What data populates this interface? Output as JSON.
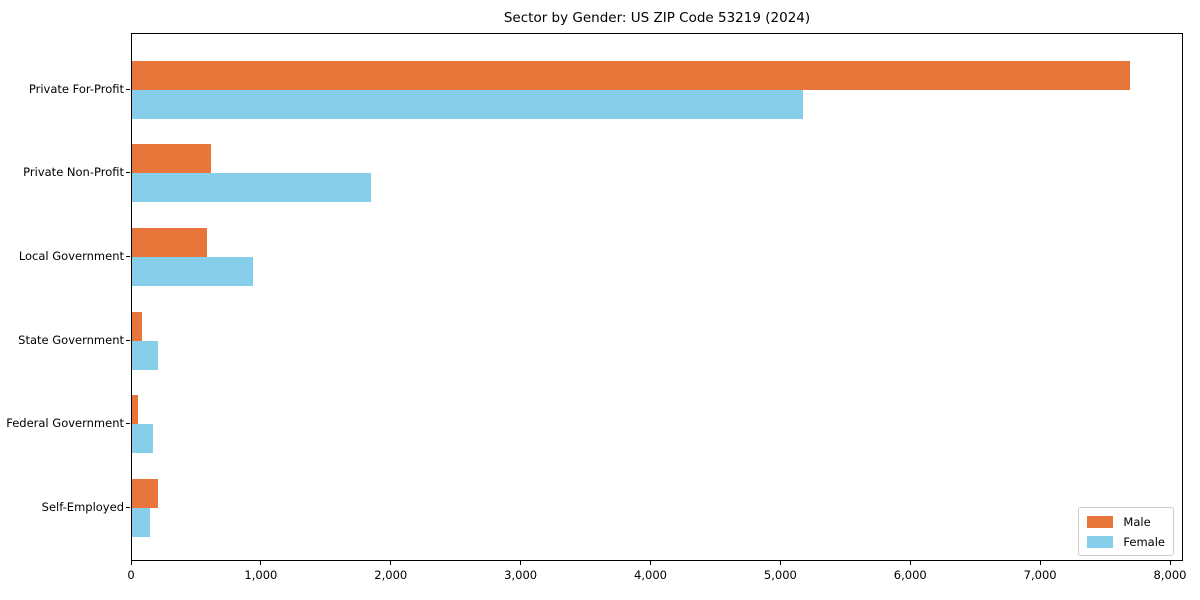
{
  "chart_data": {
    "type": "bar",
    "orientation": "horizontal",
    "title": "Sector by Gender: US ZIP Code 53219 (2024)",
    "categories": [
      "Private For-Profit",
      "Private Non-Profit",
      "Local Government",
      "State Government",
      "Federal Government",
      "Self-Employed"
    ],
    "series": [
      {
        "name": "Male",
        "color": "#E8763B",
        "values": [
          7700,
          610,
          580,
          80,
          50,
          200
        ]
      },
      {
        "name": "Female",
        "color": "#87CEEB",
        "values": [
          5180,
          1840,
          930,
          200,
          160,
          140
        ]
      }
    ],
    "xlabel": "",
    "ylabel": "",
    "xlim": [
      0,
      8100
    ],
    "x_ticks": [
      0,
      1000,
      2000,
      3000,
      4000,
      5000,
      6000,
      7000,
      8000
    ],
    "x_tick_labels": [
      "0",
      "1,000",
      "2,000",
      "3,000",
      "4,000",
      "5,000",
      "6,000",
      "7,000",
      "8,000"
    ],
    "grid": false,
    "legend_position": "lower right"
  }
}
